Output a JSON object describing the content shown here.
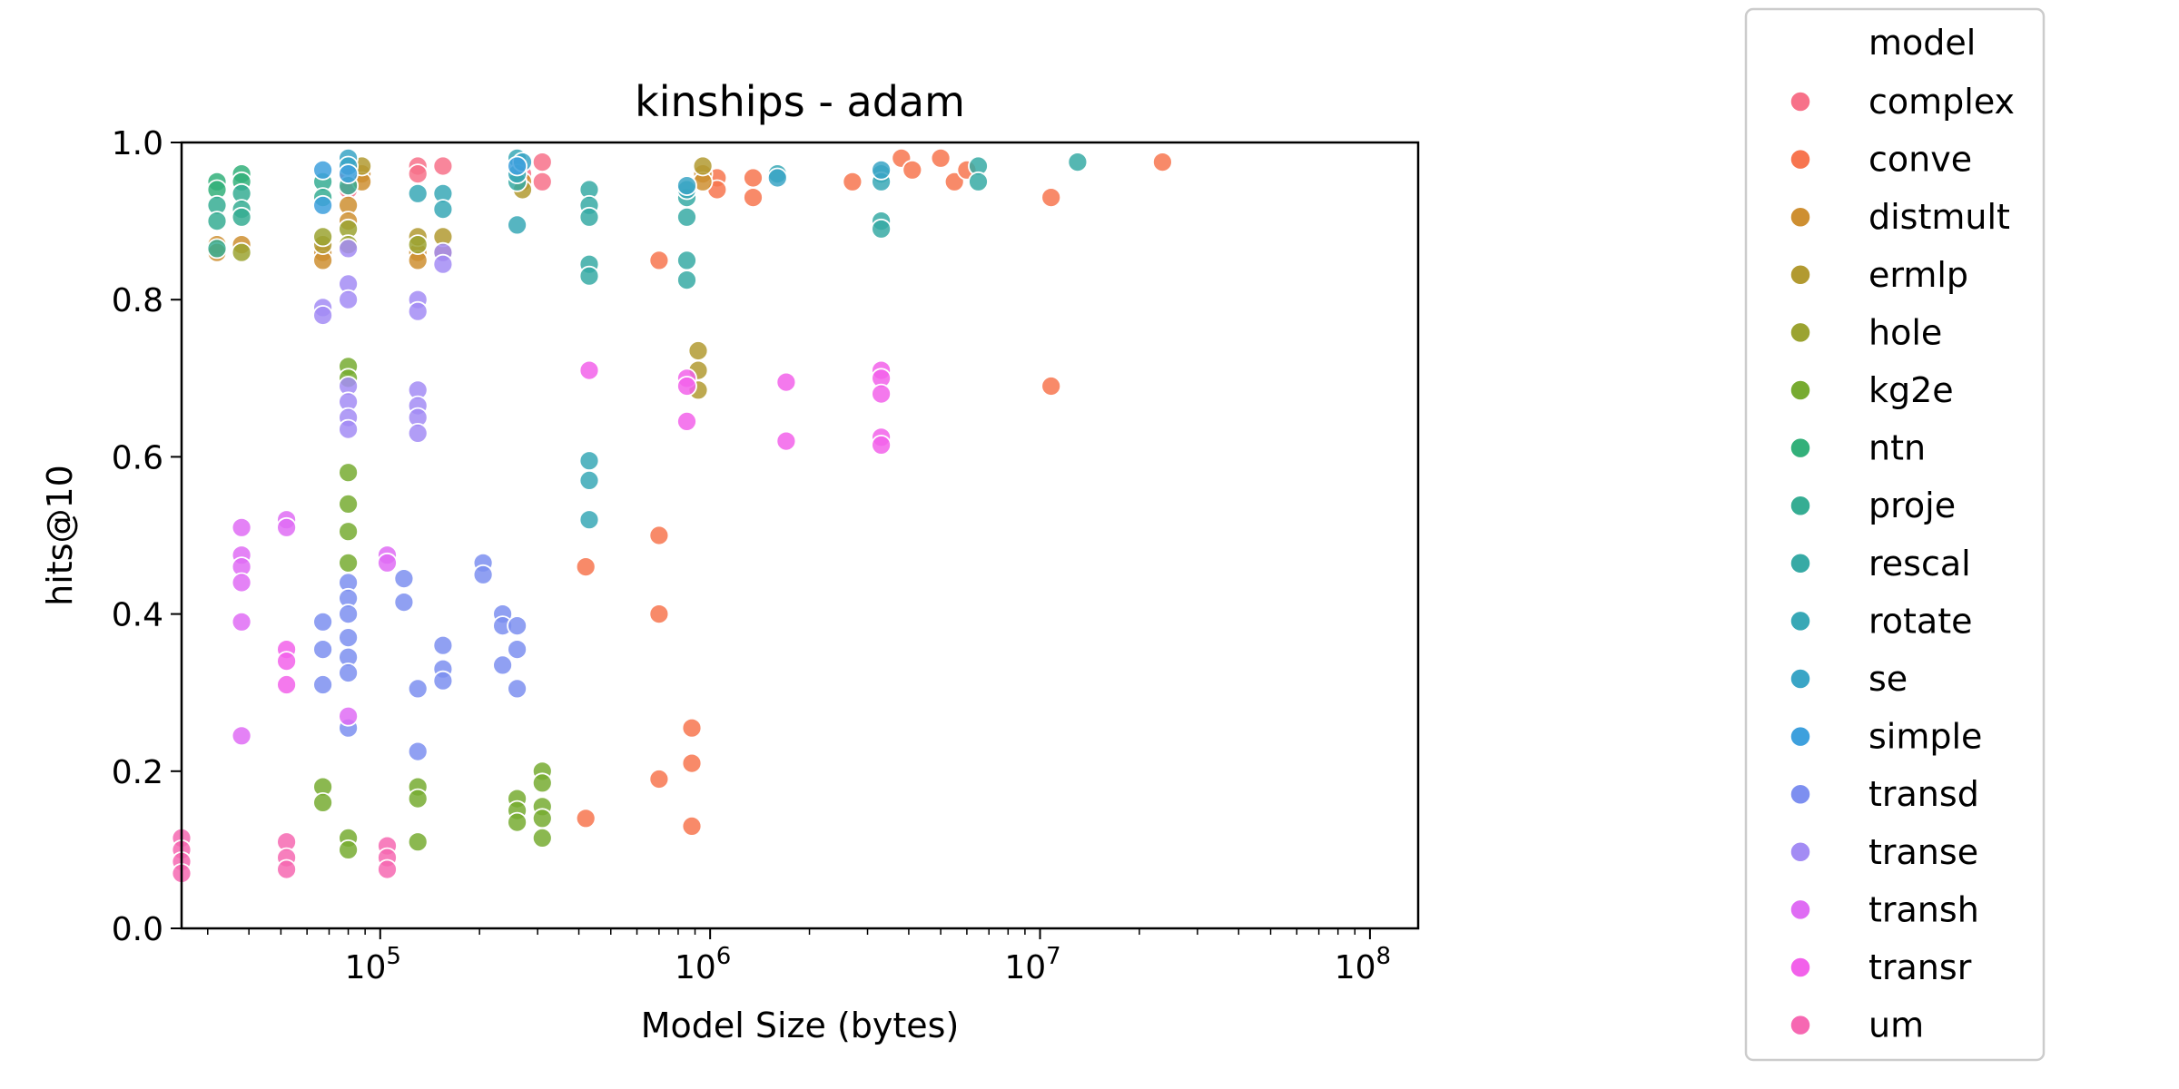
{
  "chart_data": {
    "type": "scatter",
    "title": "kinships - adam",
    "xlabel": "Model Size (bytes)",
    "ylabel": "hits@10",
    "x_scale": "log",
    "xlim": [
      25000,
      140000000
    ],
    "ylim": [
      0,
      1.0
    ],
    "x_ticks": [
      {
        "value": 100000,
        "base": "10",
        "exp": "5"
      },
      {
        "value": 1000000,
        "base": "10",
        "exp": "6"
      },
      {
        "value": 10000000,
        "base": "10",
        "exp": "7"
      },
      {
        "value": 100000000,
        "base": "10",
        "exp": "8"
      }
    ],
    "y_ticks": [
      "0.0",
      "0.2",
      "0.4",
      "0.6",
      "0.8",
      "1.0"
    ],
    "grid": false,
    "legend": {
      "title": "model",
      "position": "right, outside plot"
    },
    "series": [
      {
        "name": "complex",
        "color": "#f77189",
        "points": [
          [
            130000,
            0.97
          ],
          [
            130000,
            0.96
          ],
          [
            155000,
            0.97
          ],
          [
            80000,
            0.955
          ],
          [
            80000,
            0.94
          ],
          [
            310000,
            0.975
          ],
          [
            310000,
            0.95
          ],
          [
            270000,
            0.96
          ]
        ]
      },
      {
        "name": "conve",
        "color": "#f7754f",
        "points": [
          [
            1050000,
            0.955
          ],
          [
            1050000,
            0.94
          ],
          [
            1350000,
            0.955
          ],
          [
            1350000,
            0.93
          ],
          [
            2700000,
            0.95
          ],
          [
            3800000,
            0.98
          ],
          [
            4100000,
            0.965
          ],
          [
            5000000,
            0.98
          ],
          [
            5500000,
            0.95
          ],
          [
            6000000,
            0.965
          ],
          [
            10800000,
            0.93
          ],
          [
            10800000,
            0.69
          ],
          [
            23500000,
            0.975
          ],
          [
            700000,
            0.85
          ],
          [
            700000,
            0.5
          ],
          [
            700000,
            0.4
          ],
          [
            700000,
            0.19
          ],
          [
            420000,
            0.46
          ],
          [
            420000,
            0.14
          ],
          [
            880000,
            0.255
          ],
          [
            880000,
            0.21
          ],
          [
            880000,
            0.13
          ]
        ]
      },
      {
        "name": "distmult",
        "color": "#ce8f31",
        "points": [
          [
            32000,
            0.87
          ],
          [
            32000,
            0.86
          ],
          [
            38000,
            0.87
          ],
          [
            67000,
            0.86
          ],
          [
            67000,
            0.85
          ],
          [
            80000,
            0.92
          ],
          [
            80000,
            0.9
          ],
          [
            88000,
            0.96
          ],
          [
            88000,
            0.95
          ],
          [
            130000,
            0.86
          ],
          [
            130000,
            0.85
          ],
          [
            155000,
            0.86
          ],
          [
            270000,
            0.95
          ],
          [
            950000,
            0.96
          ],
          [
            950000,
            0.95
          ]
        ]
      },
      {
        "name": "ermlp",
        "color": "#b29a31",
        "points": [
          [
            88000,
            0.97
          ],
          [
            67000,
            0.87
          ],
          [
            130000,
            0.88
          ],
          [
            155000,
            0.88
          ],
          [
            270000,
            0.94
          ],
          [
            920000,
            0.735
          ],
          [
            920000,
            0.71
          ],
          [
            920000,
            0.685
          ],
          [
            950000,
            0.97
          ]
        ]
      },
      {
        "name": "hole",
        "color": "#9ba331",
        "points": [
          [
            38000,
            0.86
          ],
          [
            67000,
            0.88
          ],
          [
            80000,
            0.89
          ],
          [
            80000,
            0.87
          ],
          [
            130000,
            0.87
          ]
        ]
      },
      {
        "name": "kg2e",
        "color": "#77ab31",
        "points": [
          [
            80000,
            0.715
          ],
          [
            80000,
            0.7
          ],
          [
            80000,
            0.58
          ],
          [
            80000,
            0.54
          ],
          [
            80000,
            0.505
          ],
          [
            80000,
            0.465
          ],
          [
            67000,
            0.18
          ],
          [
            67000,
            0.16
          ],
          [
            80000,
            0.115
          ],
          [
            80000,
            0.1
          ],
          [
            130000,
            0.18
          ],
          [
            130000,
            0.165
          ],
          [
            130000,
            0.11
          ],
          [
            260000,
            0.165
          ],
          [
            260000,
            0.15
          ],
          [
            260000,
            0.135
          ],
          [
            310000,
            0.2
          ],
          [
            310000,
            0.185
          ],
          [
            310000,
            0.155
          ],
          [
            310000,
            0.14
          ],
          [
            310000,
            0.115
          ]
        ]
      },
      {
        "name": "ntn",
        "color": "#33b07a",
        "points": [
          [
            32000,
            0.95
          ],
          [
            32000,
            0.94
          ],
          [
            38000,
            0.96
          ],
          [
            38000,
            0.95
          ]
        ]
      },
      {
        "name": "proje",
        "color": "#36ad93",
        "points": [
          [
            32000,
            0.92
          ],
          [
            32000,
            0.9
          ],
          [
            32000,
            0.865
          ],
          [
            38000,
            0.935
          ],
          [
            38000,
            0.915
          ],
          [
            38000,
            0.905
          ],
          [
            67000,
            0.95
          ],
          [
            67000,
            0.93
          ],
          [
            80000,
            0.945
          ]
        ]
      },
      {
        "name": "rescal",
        "color": "#37aaa5",
        "points": [
          [
            430000,
            0.94
          ],
          [
            430000,
            0.92
          ],
          [
            430000,
            0.905
          ],
          [
            430000,
            0.845
          ],
          [
            430000,
            0.83
          ],
          [
            850000,
            0.93
          ],
          [
            850000,
            0.905
          ],
          [
            850000,
            0.85
          ],
          [
            850000,
            0.825
          ],
          [
            3300000,
            0.9
          ],
          [
            3300000,
            0.89
          ],
          [
            6500000,
            0.97
          ],
          [
            6500000,
            0.95
          ],
          [
            13000000,
            0.975
          ],
          [
            260000,
            0.95
          ]
        ]
      },
      {
        "name": "rotate",
        "color": "#38a8b6",
        "points": [
          [
            260000,
            0.98
          ],
          [
            260000,
            0.96
          ],
          [
            260000,
            0.895
          ],
          [
            155000,
            0.935
          ],
          [
            155000,
            0.915
          ],
          [
            130000,
            0.935
          ],
          [
            430000,
            0.595
          ],
          [
            430000,
            0.57
          ],
          [
            430000,
            0.52
          ],
          [
            850000,
            0.94
          ],
          [
            1600000,
            0.96
          ],
          [
            3300000,
            0.96
          ],
          [
            3300000,
            0.95
          ]
        ]
      },
      {
        "name": "se",
        "color": "#3aa5c6",
        "points": [
          [
            80000,
            0.98
          ],
          [
            80000,
            0.97
          ],
          [
            270000,
            0.975
          ],
          [
            850000,
            0.945
          ],
          [
            1600000,
            0.955
          ],
          [
            3300000,
            0.965
          ]
        ]
      },
      {
        "name": "simple",
        "color": "#3ea0dd",
        "points": [
          [
            67000,
            0.965
          ],
          [
            67000,
            0.92
          ],
          [
            80000,
            0.96
          ],
          [
            260000,
            0.97
          ]
        ]
      },
      {
        "name": "transd",
        "color": "#7d8ff0",
        "points": [
          [
            67000,
            0.39
          ],
          [
            67000,
            0.355
          ],
          [
            67000,
            0.31
          ],
          [
            80000,
            0.44
          ],
          [
            80000,
            0.42
          ],
          [
            80000,
            0.4
          ],
          [
            80000,
            0.37
          ],
          [
            80000,
            0.345
          ],
          [
            80000,
            0.325
          ],
          [
            80000,
            0.255
          ],
          [
            118000,
            0.445
          ],
          [
            118000,
            0.415
          ],
          [
            130000,
            0.305
          ],
          [
            130000,
            0.225
          ],
          [
            155000,
            0.36
          ],
          [
            155000,
            0.33
          ],
          [
            155000,
            0.315
          ],
          [
            205000,
            0.465
          ],
          [
            205000,
            0.45
          ],
          [
            235000,
            0.4
          ],
          [
            235000,
            0.385
          ],
          [
            235000,
            0.335
          ],
          [
            260000,
            0.385
          ],
          [
            260000,
            0.355
          ],
          [
            260000,
            0.305
          ]
        ]
      },
      {
        "name": "transe",
        "color": "#a38cf4",
        "points": [
          [
            67000,
            0.79
          ],
          [
            67000,
            0.78
          ],
          [
            80000,
            0.865
          ],
          [
            80000,
            0.82
          ],
          [
            80000,
            0.8
          ],
          [
            80000,
            0.69
          ],
          [
            80000,
            0.67
          ],
          [
            80000,
            0.65
          ],
          [
            80000,
            0.635
          ],
          [
            130000,
            0.8
          ],
          [
            130000,
            0.785
          ],
          [
            130000,
            0.685
          ],
          [
            130000,
            0.665
          ],
          [
            130000,
            0.65
          ],
          [
            130000,
            0.63
          ],
          [
            155000,
            0.86
          ],
          [
            155000,
            0.845
          ]
        ]
      },
      {
        "name": "transh",
        "color": "#df6cf4",
        "points": [
          [
            38000,
            0.51
          ],
          [
            38000,
            0.475
          ],
          [
            38000,
            0.46
          ],
          [
            38000,
            0.44
          ],
          [
            38000,
            0.39
          ],
          [
            38000,
            0.245
          ],
          [
            52000,
            0.52
          ],
          [
            52000,
            0.51
          ],
          [
            80000,
            0.27
          ],
          [
            105000,
            0.475
          ],
          [
            105000,
            0.465
          ]
        ]
      },
      {
        "name": "transr",
        "color": "#f261ea",
        "points": [
          [
            52000,
            0.355
          ],
          [
            52000,
            0.34
          ],
          [
            52000,
            0.31
          ],
          [
            430000,
            0.71
          ],
          [
            850000,
            0.7
          ],
          [
            850000,
            0.69
          ],
          [
            850000,
            0.645
          ],
          [
            1700000,
            0.695
          ],
          [
            1700000,
            0.62
          ],
          [
            3300000,
            0.71
          ],
          [
            3300000,
            0.7
          ],
          [
            3300000,
            0.68
          ],
          [
            3300000,
            0.625
          ],
          [
            3300000,
            0.615
          ]
        ]
      },
      {
        "name": "um",
        "color": "#f668b2",
        "points": [
          [
            25000,
            0.115
          ],
          [
            25000,
            0.1
          ],
          [
            25000,
            0.085
          ],
          [
            25000,
            0.07
          ],
          [
            52000,
            0.11
          ],
          [
            52000,
            0.09
          ],
          [
            52000,
            0.075
          ],
          [
            105000,
            0.105
          ],
          [
            105000,
            0.09
          ],
          [
            105000,
            0.075
          ]
        ]
      }
    ]
  }
}
